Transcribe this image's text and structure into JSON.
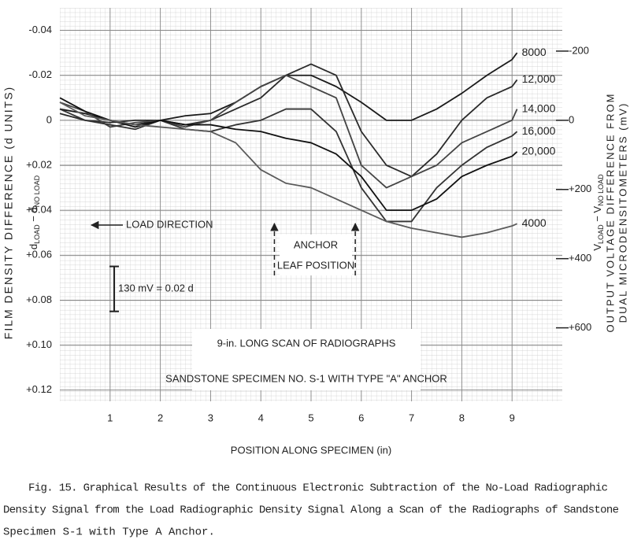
{
  "chart_data": {
    "type": "line",
    "x_label": "POSITION ALONG SPECIMEN (in)",
    "y_label": "FILM DENSITY DIFFERENCE (d UNITS)",
    "y_label_formula": [
      "d",
      "LOAD",
      " − d",
      "NO LOAD"
    ],
    "y2_label": [
      "OUTPUT VOLTAGE DIFFERENCE FROM",
      "DUAL MICRODENSITOMETERS (mV)"
    ],
    "y2_label_formula": [
      "V",
      "LOAD",
      " − V",
      "NO LOAD"
    ],
    "x": [
      0,
      0.5,
      1,
      1.5,
      2,
      2.5,
      3,
      3.5,
      4,
      4.5,
      5,
      5.5,
      6,
      6.5,
      7,
      7.5,
      8,
      8.5,
      9,
      9.1
    ],
    "xlim": [
      0,
      10
    ],
    "xticks": [
      1,
      2,
      3,
      4,
      5,
      6,
      7,
      8,
      9
    ],
    "ylim": [
      -0.05,
      0.125
    ],
    "y_reversed": true,
    "yticks": [
      -0.04,
      -0.02,
      0,
      {
        "value": 0.02,
        "label": "+0.02"
      },
      {
        "value": 0.04,
        "label": "+0.04"
      },
      {
        "value": 0.06,
        "label": "+0.06"
      },
      {
        "value": 0.08,
        "label": "+0.08"
      },
      {
        "value": 0.1,
        "label": "+0.10"
      },
      {
        "value": 0.12,
        "label": "+0.12"
      }
    ],
    "y2lim": [
      -325,
      812.5
    ],
    "y2ticks": [
      -200,
      0,
      {
        "value": 200,
        "label": "+200"
      },
      {
        "value": 400,
        "label": "+400"
      },
      {
        "value": 600,
        "label": "+600"
      }
    ],
    "grid": true,
    "series": [
      {
        "name": "8000",
        "color": "#1a1a1a",
        "values": [
          -0.005,
          -0.003,
          0,
          0.002,
          0,
          -0.002,
          -0.003,
          -0.008,
          -0.015,
          -0.02,
          -0.02,
          -0.015,
          -0.008,
          0,
          0,
          -0.005,
          -0.012,
          -0.02,
          -0.027,
          -0.03
        ]
      },
      {
        "name": "12,000",
        "color": "#2a2a2a",
        "values": [
          -0.003,
          0,
          0.001,
          0,
          0,
          0.002,
          0,
          -0.005,
          -0.01,
          -0.02,
          -0.025,
          -0.02,
          0.005,
          0.02,
          0.025,
          0.015,
          0,
          -0.01,
          -0.015,
          -0.018
        ]
      },
      {
        "name": "14,000",
        "color": "#444444",
        "values": [
          -0.008,
          -0.004,
          0.003,
          0.001,
          0,
          0.003,
          0,
          -0.008,
          -0.015,
          -0.02,
          -0.015,
          -0.01,
          0.02,
          0.03,
          0.025,
          0.02,
          0.01,
          0.005,
          0,
          -0.005
        ]
      },
      {
        "name": "16,000",
        "color": "#333333",
        "values": [
          -0.005,
          0,
          0.002,
          0.004,
          0,
          0.004,
          0.005,
          0.002,
          0,
          -0.005,
          -0.005,
          0.005,
          0.03,
          0.045,
          0.045,
          0.03,
          0.02,
          0.012,
          0.007,
          0.005
        ]
      },
      {
        "name": "20,000",
        "color": "#111111",
        "values": [
          -0.01,
          -0.004,
          0,
          0.003,
          0,
          0.002,
          0.002,
          0.004,
          0.005,
          0.008,
          0.01,
          0.015,
          0.025,
          0.04,
          0.04,
          0.035,
          0.025,
          0.02,
          0.016,
          0.014
        ]
      },
      {
        "name": "4000",
        "color": "#5a5a5a",
        "values": [
          -0.008,
          -0.002,
          0,
          0.002,
          0.003,
          0.004,
          0.005,
          0.01,
          0.022,
          0.028,
          0.03,
          0.035,
          0.04,
          0.045,
          0.048,
          0.05,
          0.052,
          0.05,
          0.047,
          0.046
        ]
      }
    ],
    "load_direction": "LOAD DIRECTION",
    "anchor_label": [
      "ANCHOR",
      "LEAF POSITION"
    ],
    "anchor_positions": [
      4.27,
      5.88
    ],
    "scale_label": "130 mV = 0.02 d",
    "scale_bar": [
      0.065,
      0.085
    ],
    "scan_title": [
      "9-in. LONG SCAN OF RADIOGRAPHS",
      "SANDSTONE SPECIMEN NO. S-1 WITH TYPE \"A\" ANCHOR"
    ],
    "caption": [
      "Fig. 15.  Graphical Results of the Continuous Electronic Subtraction of the No-Load Radiographic",
      "Density Signal from the Load Radiographic Density Signal Along a Scan of the Radiographs of Sandstone",
      "Specimen S-1 with Type A Anchor."
    ]
  }
}
